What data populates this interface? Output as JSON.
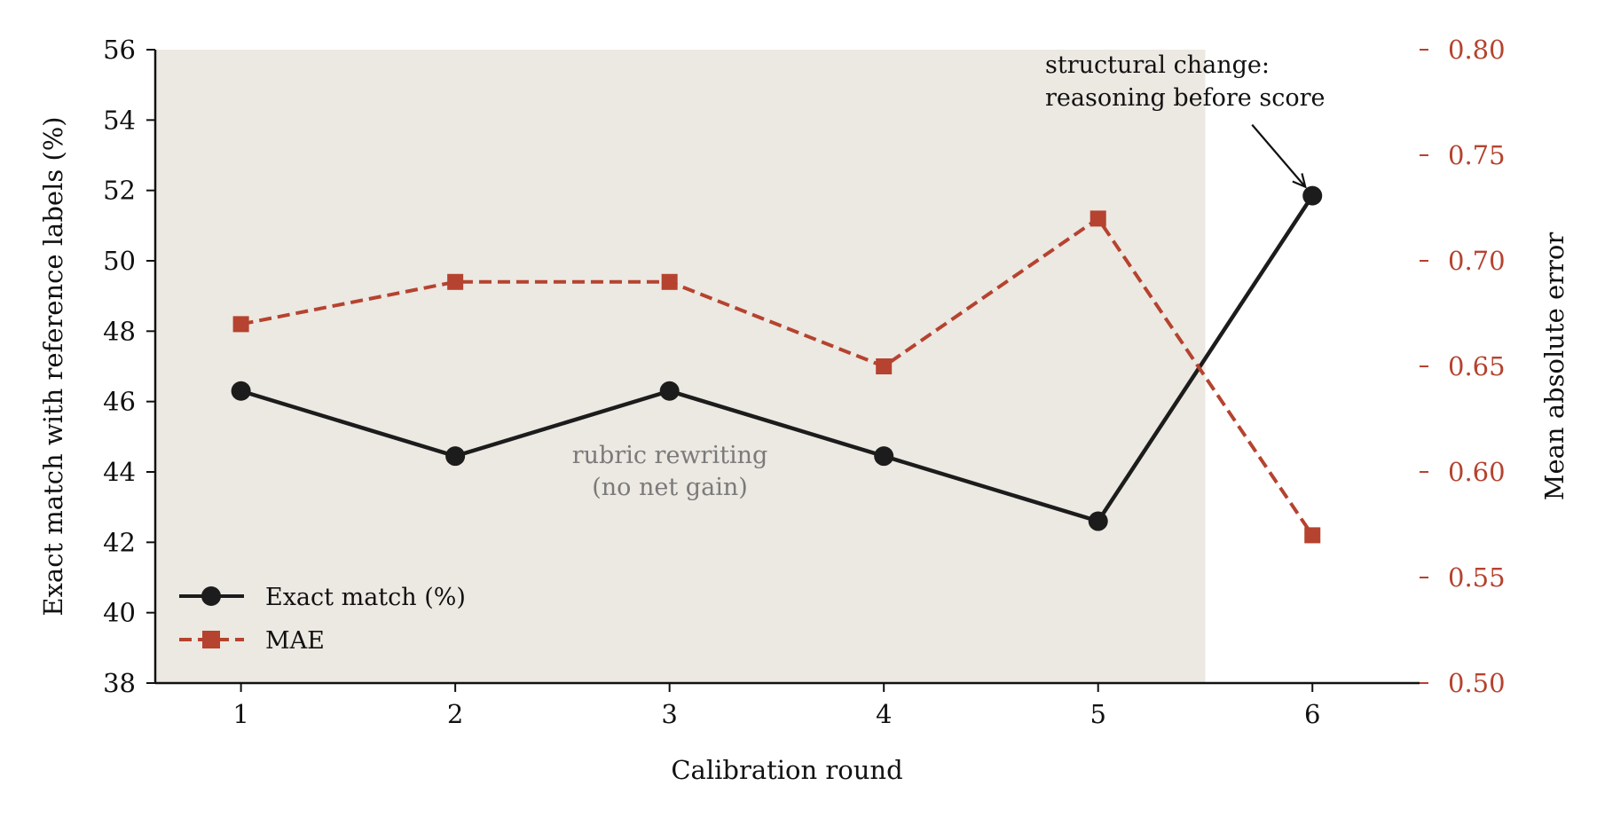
{
  "chart_data": {
    "type": "line",
    "x": [
      1,
      2,
      3,
      4,
      5,
      6
    ],
    "xlabel": "Calibration round",
    "xlim": [
      0.6,
      6.5
    ],
    "series": [
      {
        "name": "Exact match (%)",
        "axis": "left",
        "values": [
          46.3,
          44.45,
          46.3,
          44.45,
          42.6,
          51.85
        ],
        "color": "#1c1c1c",
        "linestyle": "solid",
        "marker": "circle"
      },
      {
        "name": "MAE",
        "axis": "right",
        "values": [
          0.67,
          0.69,
          0.69,
          0.65,
          0.72,
          0.57
        ],
        "color": "#b5432f",
        "linestyle": "dashed",
        "marker": "square"
      }
    ],
    "left_axis": {
      "label": "Exact match with reference labels (%)",
      "ylim": [
        38,
        56
      ],
      "ticks": [
        "38",
        "40",
        "42",
        "44",
        "46",
        "48",
        "50",
        "52",
        "54",
        "56"
      ]
    },
    "right_axis": {
      "label": "Mean absolute error",
      "ylim": [
        0.5,
        0.8
      ],
      "ticks": [
        "0.50",
        "0.55",
        "0.60",
        "0.65",
        "0.70",
        "0.75",
        "0.80"
      ],
      "color": "#b5432f"
    },
    "x_ticks": [
      "1",
      "2",
      "3",
      "4",
      "5",
      "6"
    ],
    "shaded_region": {
      "x_from": 0.6,
      "x_to": 5.5,
      "color": "#ece8e2"
    },
    "annotations": {
      "shade_label_line1": "rubric rewriting",
      "shade_label_line2": "(no net gain)",
      "arrow_label_line1": "structural change:",
      "arrow_label_line2": "reasoning before score",
      "arrow_target": {
        "x": 6,
        "y": 51.85
      }
    },
    "legend": {
      "position": "lower-left"
    },
    "grid": false
  }
}
